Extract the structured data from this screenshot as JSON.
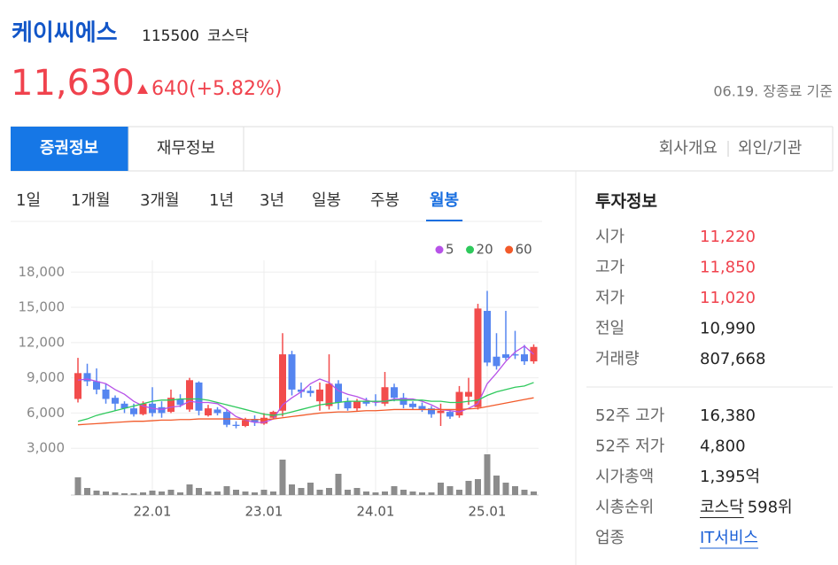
{
  "header": {
    "name": "케이씨에스",
    "code": "115500",
    "market": "코스닥"
  },
  "quote": {
    "price": "11,630",
    "change": "640",
    "change_pct": "(+5.82%)",
    "as_of": "06.19. 장종료 기준"
  },
  "tabs": [
    "증권정보",
    "재무정보"
  ],
  "links": [
    "회사개요",
    "외인/기관"
  ],
  "periods": [
    "1일",
    "1개월",
    "3개월",
    "1년",
    "3년",
    "일봉",
    "주봉",
    "월봉"
  ],
  "active_period": 7,
  "chart_data": {
    "type": "candlestick",
    "categories": [
      null,
      null,
      null,
      null,
      null,
      null,
      null,
      null,
      "22.01",
      null,
      null,
      null,
      null,
      null,
      null,
      null,
      null,
      null,
      null,
      null,
      "23.01",
      null,
      null,
      null,
      null,
      null,
      null,
      null,
      null,
      null,
      null,
      null,
      "24.01",
      null,
      null,
      null,
      null,
      null,
      null,
      null,
      null,
      null,
      null,
      null,
      "25.01",
      null,
      null,
      null,
      null,
      null
    ],
    "open": [
      7200,
      9400,
      8700,
      8000,
      7300,
      6800,
      6400,
      5900,
      6800,
      6500,
      6100,
      7200,
      6300,
      8600,
      5800,
      6300,
      6100,
      5000,
      4900,
      5500,
      5100,
      5600,
      6200,
      11000,
      8000,
      7900,
      7000,
      6600,
      8500,
      7000,
      6400,
      7000,
      7000,
      6800,
      8200,
      7300,
      6800,
      6600,
      6400,
      6000,
      6100,
      5800,
      7400,
      6500,
      14700,
      10800,
      11000,
      11000,
      11000,
      10400
    ],
    "high": [
      10700,
      10200,
      9800,
      8500,
      7500,
      7000,
      6800,
      7000,
      8200,
      7000,
      8000,
      7600,
      9000,
      8700,
      6700,
      6500,
      6300,
      5300,
      5600,
      5800,
      6000,
      6200,
      12800,
      11300,
      8600,
      8300,
      8600,
      11000,
      8800,
      7300,
      7200,
      7300,
      7600,
      9500,
      8500,
      7700,
      7000,
      6900,
      6600,
      6800,
      6300,
      8300,
      9000,
      15300,
      16400,
      12800,
      14700,
      13000,
      11800,
      11850
    ],
    "low": [
      6900,
      8300,
      7600,
      6800,
      6200,
      6000,
      5700,
      5800,
      5700,
      5600,
      6000,
      6500,
      6100,
      5800,
      5700,
      5800,
      4800,
      4700,
      4800,
      4900,
      5000,
      5500,
      5700,
      7500,
      7300,
      7400,
      6200,
      6300,
      6300,
      6200,
      6200,
      6600,
      6600,
      6600,
      7000,
      6400,
      6300,
      6100,
      5600,
      4900,
      5500,
      5600,
      6700,
      6300,
      10000,
      9700,
      10500,
      10600,
      10100,
      10200
    ],
    "close": [
      9400,
      8700,
      8000,
      7200,
      6800,
      6400,
      5900,
      6800,
      6000,
      6000,
      7300,
      6700,
      8800,
      6200,
      6400,
      6000,
      5000,
      4900,
      5400,
      5200,
      5600,
      6100,
      11000,
      8000,
      7800,
      7700,
      8000,
      8500,
      6900,
      6400,
      7000,
      6800,
      6900,
      8200,
      7300,
      6700,
      6500,
      6300,
      5900,
      6200,
      5700,
      7800,
      7800,
      14900,
      10300,
      10000,
      10700,
      10900,
      10400,
      11630
    ],
    "up_color": "#f24c4c",
    "down_color": "#5585f0",
    "ma": [
      {
        "name": "5",
        "color": "#b753e8",
        "values": [
          8800,
          8900,
          8700,
          8500,
          8000,
          7600,
          7000,
          6600,
          6400,
          6300,
          6500,
          6600,
          7000,
          6900,
          6900,
          6800,
          6300,
          5700,
          5400,
          5200,
          5200,
          5500,
          6700,
          7300,
          7800,
          8500,
          8900,
          8600,
          7900,
          7600,
          7400,
          7100,
          6900,
          7000,
          7200,
          7200,
          7200,
          7000,
          6700,
          6300,
          6200,
          6100,
          6400,
          6800,
          8500,
          9400,
          10400,
          11200,
          11700,
          11000
        ]
      },
      {
        "name": "20",
        "color": "#2ec95c",
        "values": [
          5300,
          5500,
          5800,
          6000,
          6200,
          6400,
          6600,
          6800,
          7000,
          7100,
          7100,
          7200,
          7200,
          7200,
          7100,
          6900,
          6700,
          6500,
          6300,
          6100,
          5900,
          5800,
          5900,
          6100,
          6300,
          6500,
          6700,
          6800,
          6900,
          7000,
          7000,
          7000,
          7000,
          7000,
          7100,
          7100,
          7100,
          7100,
          7000,
          7000,
          6900,
          6900,
          7000,
          7100,
          7500,
          7800,
          8000,
          8200,
          8300,
          8600
        ]
      },
      {
        "name": "60",
        "color": "#f25a2a",
        "values": [
          5000,
          5050,
          5100,
          5150,
          5200,
          5250,
          5300,
          5300,
          5350,
          5400,
          5400,
          5450,
          5450,
          5500,
          5500,
          5500,
          5500,
          5500,
          5450,
          5450,
          5450,
          5500,
          5600,
          5700,
          5800,
          5900,
          6000,
          6050,
          6100,
          6100,
          6150,
          6200,
          6200,
          6250,
          6300,
          6300,
          6300,
          6300,
          6300,
          6300,
          6300,
          6300,
          6350,
          6400,
          6550,
          6700,
          6850,
          7000,
          7150,
          7300
        ]
      }
    ],
    "volume": {
      "color": "#8c8c8c",
      "lim": [
        0,
        50
      ],
      "values": [
        20,
        8,
        5,
        4,
        3,
        2,
        2,
        3,
        5,
        4,
        6,
        3,
        12,
        8,
        4,
        4,
        10,
        6,
        4,
        3,
        6,
        4,
        40,
        12,
        8,
        14,
        6,
        8,
        24,
        6,
        8,
        4,
        3,
        4,
        10,
        6,
        4,
        3,
        3,
        14,
        10,
        6,
        16,
        18,
        46,
        22,
        14,
        10,
        6,
        4
      ]
    },
    "ylim": [
      0,
      19000
    ],
    "yticks": [
      {
        "value": 3000,
        "label": "3,000"
      },
      {
        "value": 6000,
        "label": "6,000"
      },
      {
        "value": 9000,
        "label": "9,000"
      },
      {
        "value": 12000,
        "label": "12,000"
      },
      {
        "value": 15000,
        "label": "15,000"
      },
      {
        "value": 18000,
        "label": "18,000"
      }
    ],
    "grid": true
  },
  "info": {
    "title": "투자정보",
    "rows": [
      {
        "label": "시가",
        "value": "11,220",
        "color": "#f0424d"
      },
      {
        "label": "고가",
        "value": "11,850",
        "color": "#f0424d"
      },
      {
        "label": "저가",
        "value": "11,020",
        "color": "#f0424d"
      },
      {
        "label": "전일",
        "value": "10,990"
      },
      {
        "label": "거래량",
        "value": "807,668"
      }
    ],
    "rows52": [
      {
        "label": "52주 고가",
        "value": "16,380"
      },
      {
        "label": "52주 저가",
        "value": "4,800"
      },
      {
        "label": "시가총액",
        "value": "1,395억"
      },
      {
        "label": "시총순위",
        "value": "코스닥",
        "extra": "598위",
        "link": true
      },
      {
        "label": "업종",
        "value": "IT서비스",
        "color": "#1a5fd6",
        "link": true
      }
    ]
  }
}
